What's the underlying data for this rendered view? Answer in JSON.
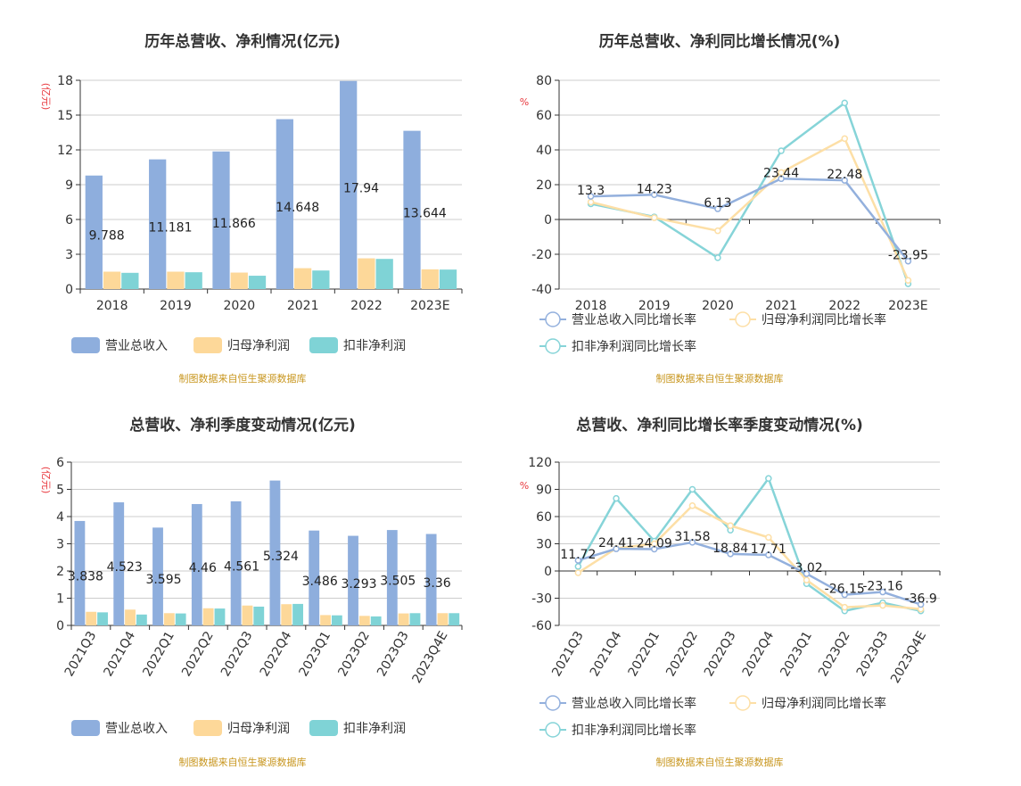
{
  "colors": {
    "revenue": "#8eaedd",
    "net_profit": "#fdd899",
    "deducted_profit": "#7fd3d6",
    "revenue_line": "#93b0dd",
    "net_line": "#fddfa6",
    "deducted_line": "#86d4d8",
    "grid": "#cccccc",
    "axis": "#333333",
    "unit": "#e8383d",
    "source": "#c8961e"
  },
  "source_note": "制图数据来自恒生聚源数据库",
  "chart_data": [
    {
      "type": "bar",
      "title": "历年总营收、净利情况(亿元)",
      "ylabel": "(亿元)",
      "categories": [
        "2018",
        "2019",
        "2020",
        "2021",
        "2022",
        "2023E"
      ],
      "ylim": [
        0,
        18
      ],
      "yticks": [
        0,
        3,
        6,
        9,
        12,
        15,
        18
      ],
      "series": [
        {
          "name": "营业总收入",
          "values": [
            9.788,
            11.181,
            11.866,
            14.648,
            17.94,
            13.644
          ]
        },
        {
          "name": "归母净利润",
          "values": [
            1.5,
            1.5,
            1.42,
            1.8,
            2.65,
            1.7
          ]
        },
        {
          "name": "扣非净利润",
          "values": [
            1.4,
            1.45,
            1.15,
            1.6,
            2.6,
            1.68
          ]
        }
      ],
      "data_labels": [
        "9.788",
        "11.181",
        "11.866",
        "14.648",
        "17.94",
        "13.644"
      ],
      "legend": "bottom",
      "grid": true
    },
    {
      "type": "line",
      "title": "历年总营收、净利同比增长情况(%)",
      "ylabel": "%",
      "categories": [
        "2018",
        "2019",
        "2020",
        "2021",
        "2022",
        "2023E"
      ],
      "ylim": [
        -40,
        80
      ],
      "yticks": [
        -40,
        -20,
        0,
        20,
        40,
        60,
        80
      ],
      "series": [
        {
          "name": "营业总收入同比增长率",
          "values": [
            13.3,
            14.23,
            6.13,
            23.44,
            22.48,
            -23.95
          ]
        },
        {
          "name": "归母净利润同比增长率",
          "values": [
            10,
            1,
            -6.5,
            27,
            46.5,
            -35
          ]
        },
        {
          "name": "扣非净利润同比增长率",
          "values": [
            9,
            1.5,
            -22,
            39.5,
            67,
            -37
          ]
        }
      ],
      "data_labels": [
        "13.3",
        "14.23",
        "6.13",
        "23.44",
        "22.48",
        "-23.95"
      ],
      "legend": "bottom",
      "grid": true
    },
    {
      "type": "bar",
      "title": "总营收、净利季度变动情况(亿元)",
      "ylabel": "(亿元)",
      "categories": [
        "2021Q3",
        "2021Q4",
        "2022Q1",
        "2022Q2",
        "2022Q3",
        "2022Q4",
        "2023Q1",
        "2023Q2",
        "2023Q3",
        "2023Q4E"
      ],
      "ylim": [
        0,
        6
      ],
      "yticks": [
        0,
        1,
        2,
        3,
        4,
        5,
        6
      ],
      "series": [
        {
          "name": "营业总收入",
          "values": [
            3.838,
            4.523,
            3.595,
            4.46,
            4.561,
            5.324,
            3.486,
            3.293,
            3.505,
            3.36
          ]
        },
        {
          "name": "归母净利润",
          "values": [
            0.5,
            0.58,
            0.45,
            0.63,
            0.73,
            0.78,
            0.38,
            0.35,
            0.44,
            0.45
          ]
        },
        {
          "name": "扣非净利润",
          "values": [
            0.48,
            0.4,
            0.44,
            0.62,
            0.69,
            0.79,
            0.37,
            0.33,
            0.45,
            0.45
          ]
        }
      ],
      "data_labels": [
        "3.838",
        "4.523",
        "3.595",
        "4.46",
        "4.561",
        "5.324",
        "3.486",
        "3.293",
        "3.505",
        "3.36"
      ],
      "legend": "bottom",
      "grid": true
    },
    {
      "type": "line",
      "title": "总营收、净利同比增长率季度变动情况(%)",
      "ylabel": "%",
      "categories": [
        "2021Q3",
        "2021Q4",
        "2022Q1",
        "2022Q2",
        "2022Q3",
        "2022Q4",
        "2023Q1",
        "2023Q2",
        "2023Q3",
        "2023Q4E"
      ],
      "ylim": [
        -60,
        120
      ],
      "yticks": [
        -60,
        -30,
        0,
        30,
        60,
        90,
        120
      ],
      "series": [
        {
          "name": "营业总收入同比增长率",
          "values": [
            11.72,
            24.41,
            24.09,
            31.58,
            18.84,
            17.71,
            -3.02,
            -26.15,
            -23.16,
            -36.9
          ]
        },
        {
          "name": "归母净利润同比增长率",
          "values": [
            -2,
            25,
            30,
            72,
            50,
            37,
            -10,
            -40,
            -38,
            -42
          ]
        },
        {
          "name": "扣非净利润同比增长率",
          "values": [
            5,
            80,
            33,
            90,
            45,
            102,
            -14,
            -44,
            -35,
            -44
          ]
        }
      ],
      "data_labels": [
        "11.72",
        "24.41",
        "24.09",
        "31.58",
        "18.84",
        "17.71",
        "-3.02",
        "-26.15",
        "-23.16",
        "-36.9"
      ],
      "legend": "bottom",
      "grid": true
    }
  ]
}
